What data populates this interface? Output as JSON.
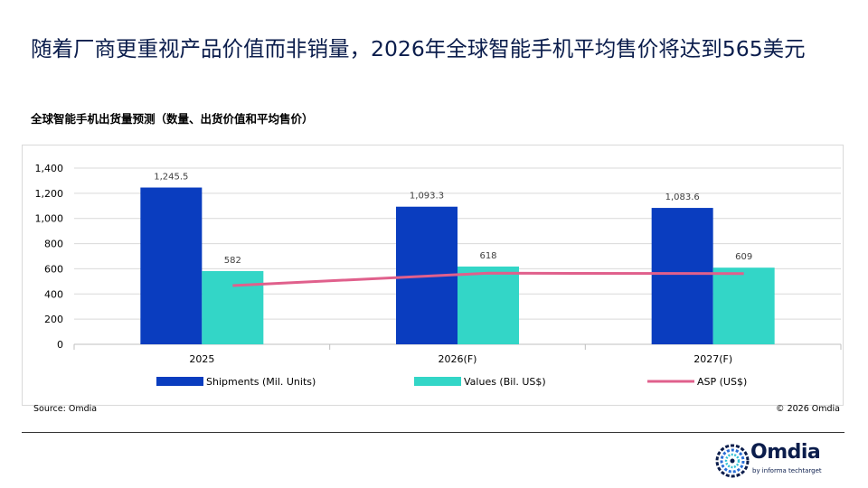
{
  "slide": {
    "title": "随着厂商更重视产品价值而非销量，2026年全球智能手机平均售价将达到565美元",
    "source": "Source: Omdia",
    "copyright": "© 2026 Omdia"
  },
  "logo": {
    "name": "Omdia",
    "tagline": "by informa techtarget",
    "icon": "omdia-logo-icon"
  },
  "chart_data": {
    "type": "bar",
    "title": "全球智能手机出货量预测（数量、出货价值和平均售价）",
    "categories": [
      "2025",
      "2026(F)",
      "2027(F)"
    ],
    "ylim": [
      0,
      1400
    ],
    "yticks": [
      0,
      200,
      400,
      600,
      800,
      1000,
      1200,
      1400
    ],
    "ytick_labels": [
      "0",
      "200",
      "400",
      "600",
      "800",
      "1,000",
      "1,200",
      "1,400"
    ],
    "grid": true,
    "legend_position": "bottom",
    "series": [
      {
        "name": "Shipments (Mil. Units)",
        "type": "bar",
        "color": "#0a3dbf",
        "values": [
          1245.5,
          1093.3,
          1083.6
        ],
        "labels": [
          "1,245.5",
          "1,093.3",
          "1,083.6"
        ]
      },
      {
        "name": "Values (Bil. US$)",
        "type": "bar",
        "color": "#33d6c7",
        "values": [
          582,
          618,
          609
        ],
        "labels": [
          "582",
          "618",
          "609"
        ]
      },
      {
        "name": "ASP (US$)",
        "type": "line",
        "color": "#e0608c",
        "values": [
          467,
          565,
          562
        ]
      }
    ]
  }
}
